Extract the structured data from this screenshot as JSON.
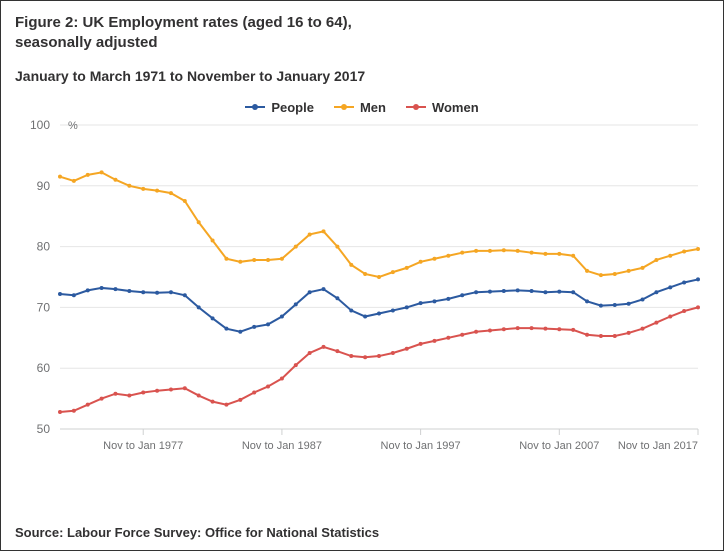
{
  "title_line1": "Figure 2: UK Employment rates (aged 16 to 64),",
  "title_line2": "seasonally adjusted",
  "subtitle": "January to March 1971 to November to January 2017",
  "source": "Source: Labour Force Survey: Office for National Statistics",
  "chart": {
    "type": "line",
    "background_color": "#ffffff",
    "title_fontsize": 15,
    "label_fontsize": 12,
    "grid_color": "#e6e6e6",
    "axis_color": "#cfd0d1",
    "tick_font_color": "#6f7072",
    "y_unit_label": "%",
    "ylim": [
      50,
      100
    ],
    "ytick_step": 10,
    "yticks": [
      50,
      60,
      70,
      80,
      90,
      100
    ],
    "xlim": [
      1971,
      2017
    ],
    "xticks": [
      {
        "x": 1977,
        "label": "Nov to Jan 1977"
      },
      {
        "x": 1987,
        "label": "Nov to Jan 1987"
      },
      {
        "x": 1997,
        "label": "Nov to Jan 1997"
      },
      {
        "x": 2007,
        "label": "Nov to Jan 2007"
      },
      {
        "x": 2017,
        "label": "Nov to Jan 2017"
      }
    ],
    "legend_position": "top-center",
    "line_width": 2,
    "marker_radius": 2,
    "series": [
      {
        "name": "People",
        "color": "#2c5aa0",
        "points": [
          [
            1971,
            72.2
          ],
          [
            1972,
            72.0
          ],
          [
            1973,
            72.8
          ],
          [
            1974,
            73.2
          ],
          [
            1975,
            73.0
          ],
          [
            1976,
            72.7
          ],
          [
            1977,
            72.5
          ],
          [
            1978,
            72.4
          ],
          [
            1979,
            72.5
          ],
          [
            1980,
            72.0
          ],
          [
            1981,
            70.0
          ],
          [
            1982,
            68.2
          ],
          [
            1983,
            66.5
          ],
          [
            1984,
            66.0
          ],
          [
            1985,
            66.8
          ],
          [
            1986,
            67.2
          ],
          [
            1987,
            68.5
          ],
          [
            1988,
            70.5
          ],
          [
            1989,
            72.5
          ],
          [
            1990,
            73.0
          ],
          [
            1991,
            71.5
          ],
          [
            1992,
            69.5
          ],
          [
            1993,
            68.5
          ],
          [
            1994,
            69.0
          ],
          [
            1995,
            69.5
          ],
          [
            1996,
            70.0
          ],
          [
            1997,
            70.7
          ],
          [
            1998,
            71.0
          ],
          [
            1999,
            71.4
          ],
          [
            2000,
            72.0
          ],
          [
            2001,
            72.5
          ],
          [
            2002,
            72.6
          ],
          [
            2003,
            72.7
          ],
          [
            2004,
            72.8
          ],
          [
            2005,
            72.7
          ],
          [
            2006,
            72.5
          ],
          [
            2007,
            72.6
          ],
          [
            2008,
            72.5
          ],
          [
            2009,
            71.0
          ],
          [
            2010,
            70.3
          ],
          [
            2011,
            70.4
          ],
          [
            2012,
            70.6
          ],
          [
            2013,
            71.3
          ],
          [
            2014,
            72.5
          ],
          [
            2015,
            73.3
          ],
          [
            2016,
            74.1
          ],
          [
            2017,
            74.6
          ]
        ]
      },
      {
        "name": "Men",
        "color": "#f5a623",
        "points": [
          [
            1971,
            91.5
          ],
          [
            1972,
            90.8
          ],
          [
            1973,
            91.8
          ],
          [
            1974,
            92.2
          ],
          [
            1975,
            91.0
          ],
          [
            1976,
            90.0
          ],
          [
            1977,
            89.5
          ],
          [
            1978,
            89.2
          ],
          [
            1979,
            88.8
          ],
          [
            1980,
            87.5
          ],
          [
            1981,
            84.0
          ],
          [
            1982,
            81.0
          ],
          [
            1983,
            78.0
          ],
          [
            1984,
            77.5
          ],
          [
            1985,
            77.8
          ],
          [
            1986,
            77.8
          ],
          [
            1987,
            78.0
          ],
          [
            1988,
            80.0
          ],
          [
            1989,
            82.0
          ],
          [
            1990,
            82.5
          ],
          [
            1991,
            80.0
          ],
          [
            1992,
            77.0
          ],
          [
            1993,
            75.5
          ],
          [
            1994,
            75.0
          ],
          [
            1995,
            75.8
          ],
          [
            1996,
            76.5
          ],
          [
            1997,
            77.5
          ],
          [
            1998,
            78.0
          ],
          [
            1999,
            78.5
          ],
          [
            2000,
            79.0
          ],
          [
            2001,
            79.3
          ],
          [
            2002,
            79.3
          ],
          [
            2003,
            79.4
          ],
          [
            2004,
            79.3
          ],
          [
            2005,
            79.0
          ],
          [
            2006,
            78.8
          ],
          [
            2007,
            78.8
          ],
          [
            2008,
            78.5
          ],
          [
            2009,
            76.0
          ],
          [
            2010,
            75.3
          ],
          [
            2011,
            75.5
          ],
          [
            2012,
            76.0
          ],
          [
            2013,
            76.5
          ],
          [
            2014,
            77.8
          ],
          [
            2015,
            78.5
          ],
          [
            2016,
            79.2
          ],
          [
            2017,
            79.6
          ]
        ]
      },
      {
        "name": "Women",
        "color": "#d9534f",
        "points": [
          [
            1971,
            52.8
          ],
          [
            1972,
            53.0
          ],
          [
            1973,
            54.0
          ],
          [
            1974,
            55.0
          ],
          [
            1975,
            55.8
          ],
          [
            1976,
            55.5
          ],
          [
            1977,
            56.0
          ],
          [
            1978,
            56.3
          ],
          [
            1979,
            56.5
          ],
          [
            1980,
            56.7
          ],
          [
            1981,
            55.5
          ],
          [
            1982,
            54.5
          ],
          [
            1983,
            54.0
          ],
          [
            1984,
            54.8
          ],
          [
            1985,
            56.0
          ],
          [
            1986,
            57.0
          ],
          [
            1987,
            58.3
          ],
          [
            1988,
            60.5
          ],
          [
            1989,
            62.5
          ],
          [
            1990,
            63.5
          ],
          [
            1991,
            62.8
          ],
          [
            1992,
            62.0
          ],
          [
            1993,
            61.8
          ],
          [
            1994,
            62.0
          ],
          [
            1995,
            62.5
          ],
          [
            1996,
            63.2
          ],
          [
            1997,
            64.0
          ],
          [
            1998,
            64.5
          ],
          [
            1999,
            65.0
          ],
          [
            2000,
            65.5
          ],
          [
            2001,
            66.0
          ],
          [
            2002,
            66.2
          ],
          [
            2003,
            66.4
          ],
          [
            2004,
            66.6
          ],
          [
            2005,
            66.6
          ],
          [
            2006,
            66.5
          ],
          [
            2007,
            66.4
          ],
          [
            2008,
            66.3
          ],
          [
            2009,
            65.5
          ],
          [
            2010,
            65.3
          ],
          [
            2011,
            65.3
          ],
          [
            2012,
            65.8
          ],
          [
            2013,
            66.5
          ],
          [
            2014,
            67.5
          ],
          [
            2015,
            68.5
          ],
          [
            2016,
            69.4
          ],
          [
            2017,
            70.0
          ]
        ]
      }
    ]
  }
}
